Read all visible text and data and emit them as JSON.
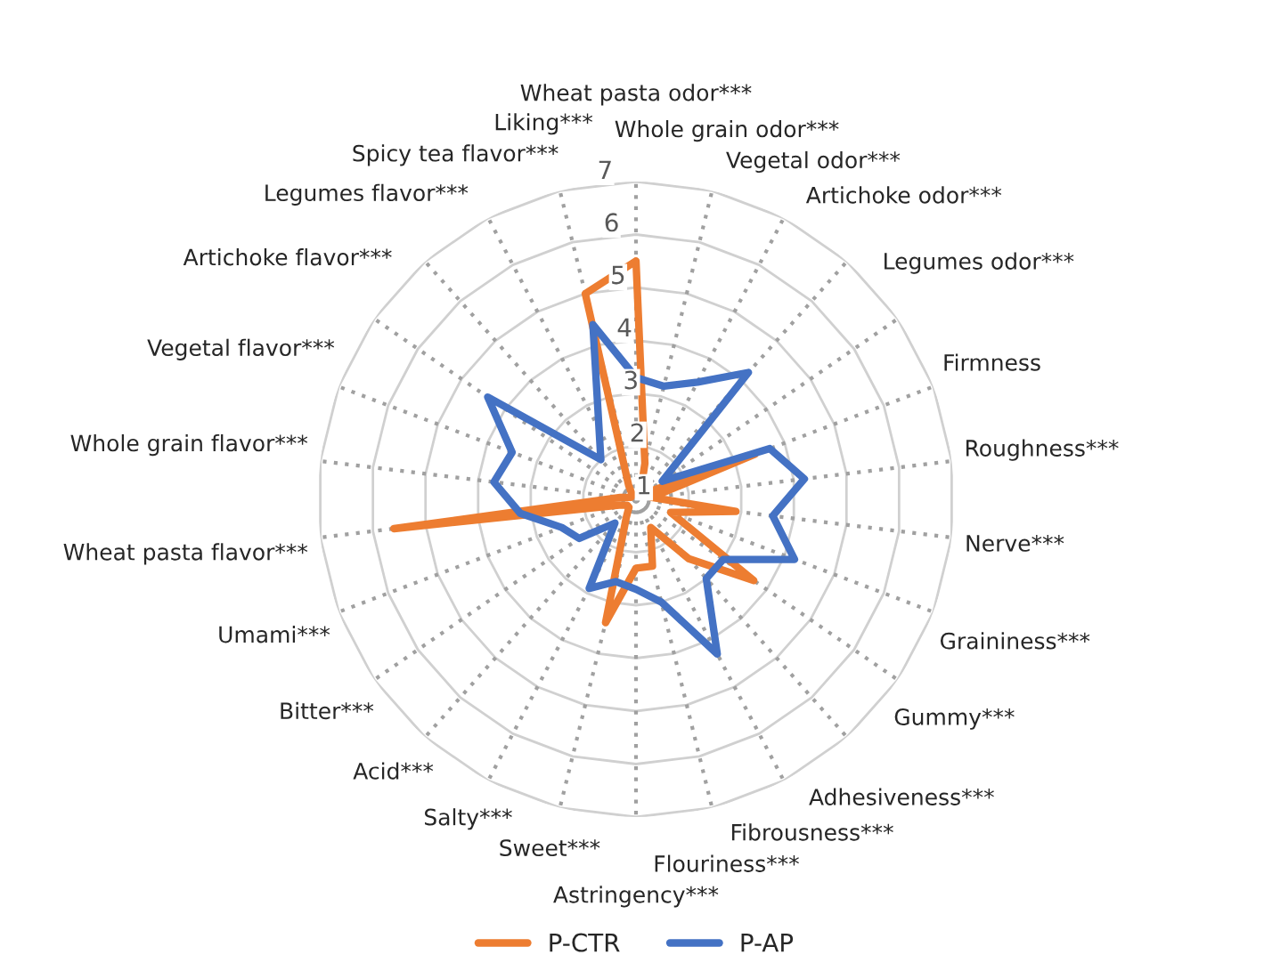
{
  "chart_data": {
    "type": "radar",
    "categories": [
      "Wheat pasta odor***",
      "Whole grain odor***",
      "Vegetal odor***",
      "Artichoke odor***",
      "Legumes odor***",
      "Firmness",
      "Roughness***",
      "Nerve***",
      "Graininess***",
      "Gummy***",
      "Adhesiveness***",
      "Fibrousness***",
      "Flouriness***",
      "Astringency***",
      "Sweet***",
      "Salty***",
      "Acid***",
      "Bitter***",
      "Umami***",
      "Wheat pasta flavor***",
      "Whole grain flavor***",
      "Vegetal flavor***",
      "Artichoke flavor***",
      "Legumes flavor***",
      "Spicy tea flavor***",
      "Liking***"
    ],
    "series": [
      {
        "name": "P-CTR",
        "color": "#ed7d31",
        "values": [
          5.5,
          1.7,
          1.2,
          1.2,
          1.2,
          3.4,
          1.3,
          2.9,
          1.7,
          3.7,
          2.5,
          1.6,
          2.3,
          2.3,
          3.4,
          1.4,
          1.2,
          1.2,
          1.3,
          5.6,
          1.3,
          1.1,
          1.1,
          1.1,
          1.3,
          5.0
        ]
      },
      {
        "name": "P-AP",
        "color": "#4472c4",
        "values": [
          3.3,
          3.2,
          3.5,
          4.2,
          1.6,
          3.7,
          4.2,
          3.6,
          4.2,
          3.0,
          3.0,
          4.3,
          3.0,
          2.7,
          2.6,
          2.9,
          1.6,
          2.3,
          2.5,
          3.2,
          3.7,
          3.5,
          4.4,
          2.0,
          2.5,
          4.4
        ]
      }
    ],
    "ylim": [
      1,
      7
    ],
    "yticks": [
      1,
      2,
      3,
      4,
      5,
      6,
      7
    ],
    "grid": true,
    "legend": "bottom",
    "marker": "none",
    "line_style": "solid"
  }
}
